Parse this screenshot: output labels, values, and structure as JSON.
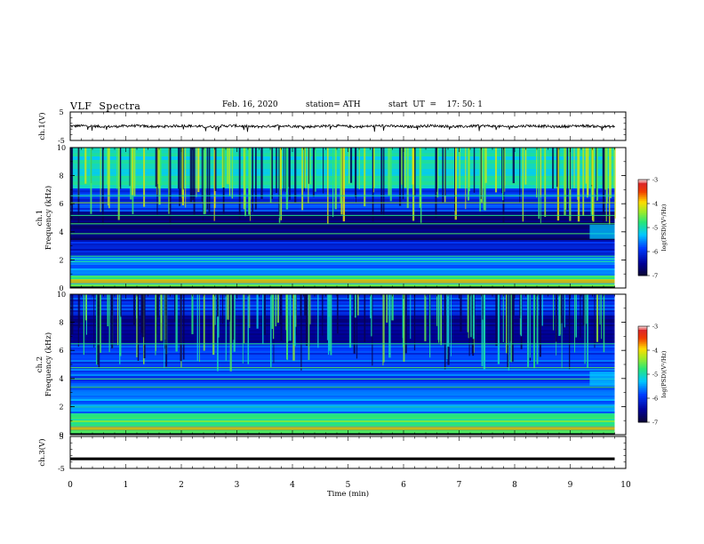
{
  "header": {
    "title": "VLF  Spectra",
    "date": "Feb. 16, 2020",
    "station": "station= ATH",
    "start": "start  UT  =    17: 50: 1"
  },
  "chart_data": [
    {
      "type": "line",
      "panel": "ch1 waveform",
      "ylabel": "ch.1(V)",
      "ylim": [
        -5,
        5
      ],
      "ytick_labels": [
        "5",
        "-5"
      ],
      "xlim": [
        0,
        10
      ],
      "series": [
        {
          "values_summary": "noisy waveform centred near 0 V, roughly ±0.3 V with occasional negative spikes to about -1.5 V, data up to ~9.8 min",
          "color": "#000000"
        }
      ]
    },
    {
      "type": "heatmap",
      "panel": "ch1 spectrogram",
      "ylabel": "ch.1\nFrequency (kHz)",
      "ylim": [
        0,
        10
      ],
      "ytick_labels": [
        "0",
        "2",
        "4",
        "6",
        "8",
        "10"
      ],
      "xlim": [
        0,
        9.8
      ],
      "colorbar": {
        "label": "log(PSD)(V²/Hz)",
        "range": [
          -7,
          -3
        ],
        "tick_labels": [
          "-3",
          "-4",
          "-5",
          "-6",
          "-7"
        ]
      }
    },
    {
      "type": "heatmap",
      "panel": "ch2 spectrogram",
      "ylabel": "ch.2\nFrequency (kHz)",
      "ylim": [
        0,
        10
      ],
      "ytick_labels": [
        "0",
        "2",
        "4",
        "6",
        "8",
        "10"
      ],
      "xlim": [
        0,
        9.8
      ],
      "colorbar": {
        "label": "log(PSD)(V²/Hz)",
        "range": [
          -7,
          -3
        ],
        "tick_labels": [
          "-3",
          "-4",
          "-5",
          "-6",
          "-7"
        ]
      }
    },
    {
      "type": "line",
      "panel": "ch3 waveform",
      "ylabel": "ch.3(V)",
      "ylim": [
        -5,
        5
      ],
      "ytick_labels": [
        "5",
        "-5"
      ],
      "xlim": [
        0,
        10
      ],
      "series": [
        {
          "values_summary": "nearly constant at about -2 V, thick trace up to ~9.8 min",
          "color": "#000000"
        }
      ]
    }
  ],
  "xaxis": {
    "label": "Time  (min)",
    "ticks": [
      0,
      1,
      2,
      3,
      4,
      5,
      6,
      7,
      8,
      9,
      10
    ]
  }
}
